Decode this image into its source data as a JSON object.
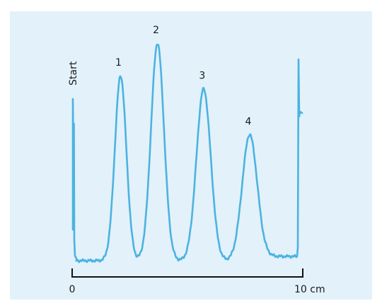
{
  "chart_data": {
    "type": "line",
    "title": "",
    "xlabel": "",
    "ylabel": "",
    "x_unit": "cm",
    "xlim": [
      0,
      10
    ],
    "tick_labels": [
      "0",
      "10 cm"
    ],
    "start_label": "Start",
    "peak_labels": [
      "1",
      "2",
      "3",
      "4"
    ],
    "peaks": [
      {
        "label": "1",
        "x": 2.1,
        "height": 0.85
      },
      {
        "label": "2",
        "x": 3.7,
        "height": 1.0
      },
      {
        "label": "3",
        "x": 5.7,
        "height": 0.79
      },
      {
        "label": "4",
        "x": 7.7,
        "height": 0.58
      }
    ],
    "line_color": "#4bb3e0",
    "background_color": "#e3f1fa",
    "grid": false
  }
}
